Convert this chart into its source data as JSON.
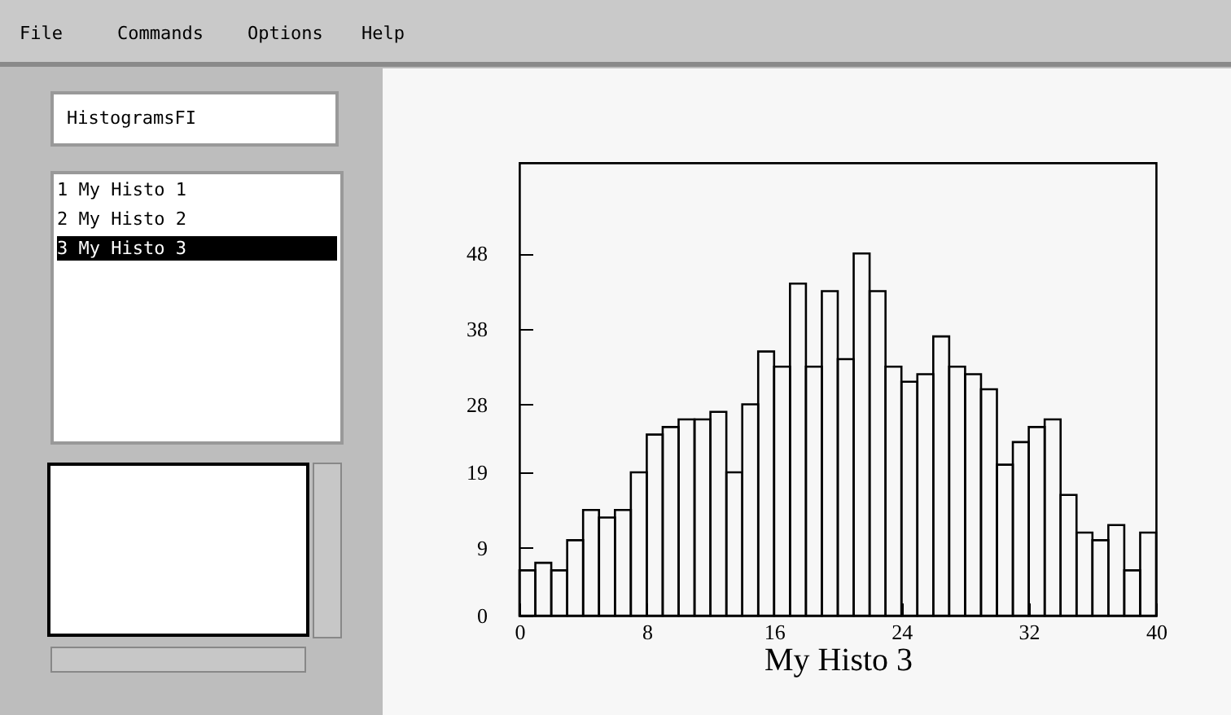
{
  "chart_data": {
    "type": "histogram",
    "xlabel": "My Histo 3",
    "bins": [
      0,
      1,
      2,
      3,
      4,
      5,
      6,
      7,
      8,
      9,
      10,
      11,
      12,
      13,
      14,
      15,
      16,
      17,
      18,
      19,
      20,
      21,
      22,
      23,
      24,
      25,
      26,
      27,
      28,
      29,
      30,
      31,
      32,
      33,
      34,
      35,
      36,
      37,
      38,
      39,
      40
    ],
    "values": [
      6,
      7,
      6,
      10,
      14,
      13,
      14,
      19,
      24,
      25,
      26,
      26,
      27,
      19,
      28,
      35,
      33,
      44,
      33,
      43,
      34,
      48,
      43,
      33,
      31,
      32,
      37,
      33,
      32,
      30,
      20,
      23,
      25,
      26,
      16,
      11,
      10,
      12,
      6,
      11
    ],
    "color": "#000000",
    "xlim": [
      0,
      40
    ],
    "xticks": [
      0,
      8,
      16,
      24,
      32,
      40
    ],
    "ylim": [
      0,
      60
    ],
    "yticks": [
      0,
      9,
      19,
      28,
      38,
      48
    ],
    "annotations": [
      "File",
      "Commands",
      "Options",
      "Help",
      "HistogramsFI",
      "1  My Histo 1",
      "2  My Histo 2",
      "3  My Histo 3"
    ]
  }
}
